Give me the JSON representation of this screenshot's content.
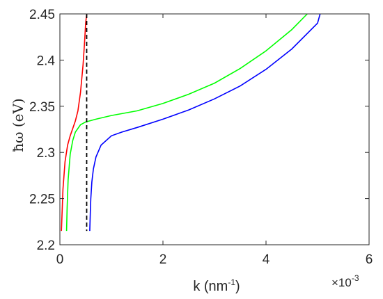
{
  "chart_data": {
    "type": "line",
    "xlabel": "k (nm",
    "xlabel_sup": "-1",
    "xlabel_close": ")",
    "ylabel": "ħω (eV)",
    "x_multiplier_base": "×10",
    "x_multiplier_exp": "-3",
    "xlim": [
      0,
      0.006
    ],
    "ylim": [
      2.2,
      2.45
    ],
    "xticks": [
      0,
      0.002,
      0.004,
      0.006
    ],
    "xtick_labels": [
      "0",
      "2",
      "4",
      "6"
    ],
    "yticks": [
      2.2,
      2.25,
      2.3,
      2.35,
      2.4,
      2.45
    ],
    "ytick_labels": [
      "2.2",
      "2.25",
      "2.3",
      "2.35",
      "2.4",
      "2.45"
    ],
    "grid": false,
    "vertical_line": {
      "x": 0.00052,
      "style": "dashed",
      "color": "#000000"
    },
    "series": [
      {
        "color": "#ff0000",
        "x": [
          3e-05,
          6e-05,
          0.0001,
          0.00015,
          0.0002,
          0.00025,
          0.0003,
          0.00035,
          0.0004,
          0.00045,
          0.00048,
          0.0005,
          0.00052
        ],
        "y": [
          2.215,
          2.26,
          2.29,
          2.308,
          2.318,
          2.326,
          2.334,
          2.345,
          2.365,
          2.395,
          2.42,
          2.44,
          2.45
        ]
      },
      {
        "color": "#00ff00",
        "x": [
          0.00013,
          0.00014,
          0.00016,
          0.0002,
          0.00025,
          0.0003,
          0.0004,
          0.0005,
          0.0007,
          0.001,
          0.0015,
          0.002,
          0.0025,
          0.003,
          0.0035,
          0.004,
          0.0045,
          0.0048
        ],
        "y": [
          2.215,
          2.24,
          2.27,
          2.298,
          2.313,
          2.322,
          2.33,
          2.333,
          2.336,
          2.34,
          2.345,
          2.353,
          2.363,
          2.375,
          2.391,
          2.41,
          2.433,
          2.45
        ]
      },
      {
        "color": "#0000ff",
        "x": [
          0.00058,
          0.00059,
          0.0006,
          0.00062,
          0.00065,
          0.0007,
          0.0008,
          0.001,
          0.0012,
          0.0015,
          0.002,
          0.0025,
          0.003,
          0.0035,
          0.004,
          0.0045,
          0.005,
          0.00505
        ],
        "y": [
          2.215,
          2.235,
          2.25,
          2.268,
          2.282,
          2.295,
          2.308,
          2.318,
          2.322,
          2.327,
          2.336,
          2.346,
          2.358,
          2.372,
          2.39,
          2.412,
          2.44,
          2.45
        ]
      }
    ]
  }
}
